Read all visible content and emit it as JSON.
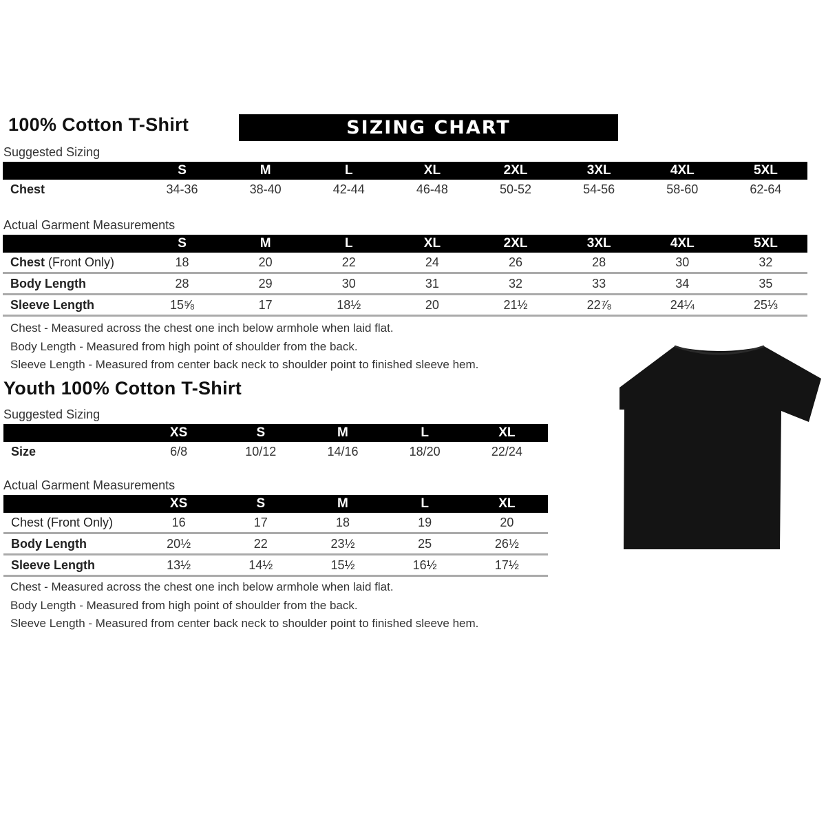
{
  "adult": {
    "title": "100% Cotton T-Shirt",
    "banner": "SIZING CHART",
    "suggested_label": "Suggested Sizing",
    "sizes": [
      "S",
      "M",
      "L",
      "XL",
      "2XL",
      "3XL",
      "4XL",
      "5XL"
    ],
    "suggested_rows": [
      {
        "label": "Chest",
        "values": [
          "34-36",
          "38-40",
          "42-44",
          "46-48",
          "50-52",
          "54-56",
          "58-60",
          "62-64"
        ]
      }
    ],
    "actual_label": "Actual Garment Measurements",
    "actual_rows": [
      {
        "label": "Chest",
        "note": " (Front Only)",
        "values": [
          "18",
          "20",
          "22",
          "24",
          "26",
          "28",
          "30",
          "32"
        ]
      },
      {
        "label": "Body Length",
        "note": "",
        "values": [
          "28",
          "29",
          "30",
          "31",
          "32",
          "33",
          "34",
          "35"
        ]
      },
      {
        "label": "Sleeve Length",
        "note": "",
        "values": [
          "15⅝",
          "17",
          "18½",
          "20",
          "21½",
          "22⅞",
          "24¼",
          "25⅓"
        ]
      }
    ],
    "notes": [
      "Chest - Measured across the chest one inch below armhole when laid flat.",
      "Body Length - Measured from high point of shoulder from the back.",
      "Sleeve Length - Measured from center back neck to shoulder point to finished sleeve hem."
    ]
  },
  "youth": {
    "title": "Youth 100% Cotton T-Shirt",
    "suggested_label": "Suggested Sizing",
    "sizes": [
      "XS",
      "S",
      "M",
      "L",
      "XL"
    ],
    "suggested_rows": [
      {
        "label": "Size",
        "values": [
          "6/8",
          "10/12",
          "14/16",
          "18/20",
          "22/24"
        ]
      }
    ],
    "actual_label": "Actual Garment Measurements",
    "actual_rows": [
      {
        "label": "Chest (Front Only)",
        "note": "",
        "values": [
          "16",
          "17",
          "18",
          "19",
          "20"
        ]
      },
      {
        "label": "Body Length",
        "note": "",
        "values": [
          "20½",
          "22",
          "23½",
          "25",
          "26½"
        ]
      },
      {
        "label": "Sleeve Length",
        "note": "",
        "values": [
          "13½",
          "14½",
          "15½",
          "16½",
          "17½"
        ]
      }
    ],
    "notes": [
      "Chest - Measured across the chest one inch below armhole when laid flat.",
      "Body Length - Measured from high point of shoulder from the back.",
      "Sleeve Length - Measured from center back neck to shoulder point to finished sleeve hem."
    ]
  },
  "image": {
    "icon": "black-t-shirt-icon",
    "color": "#141414"
  }
}
